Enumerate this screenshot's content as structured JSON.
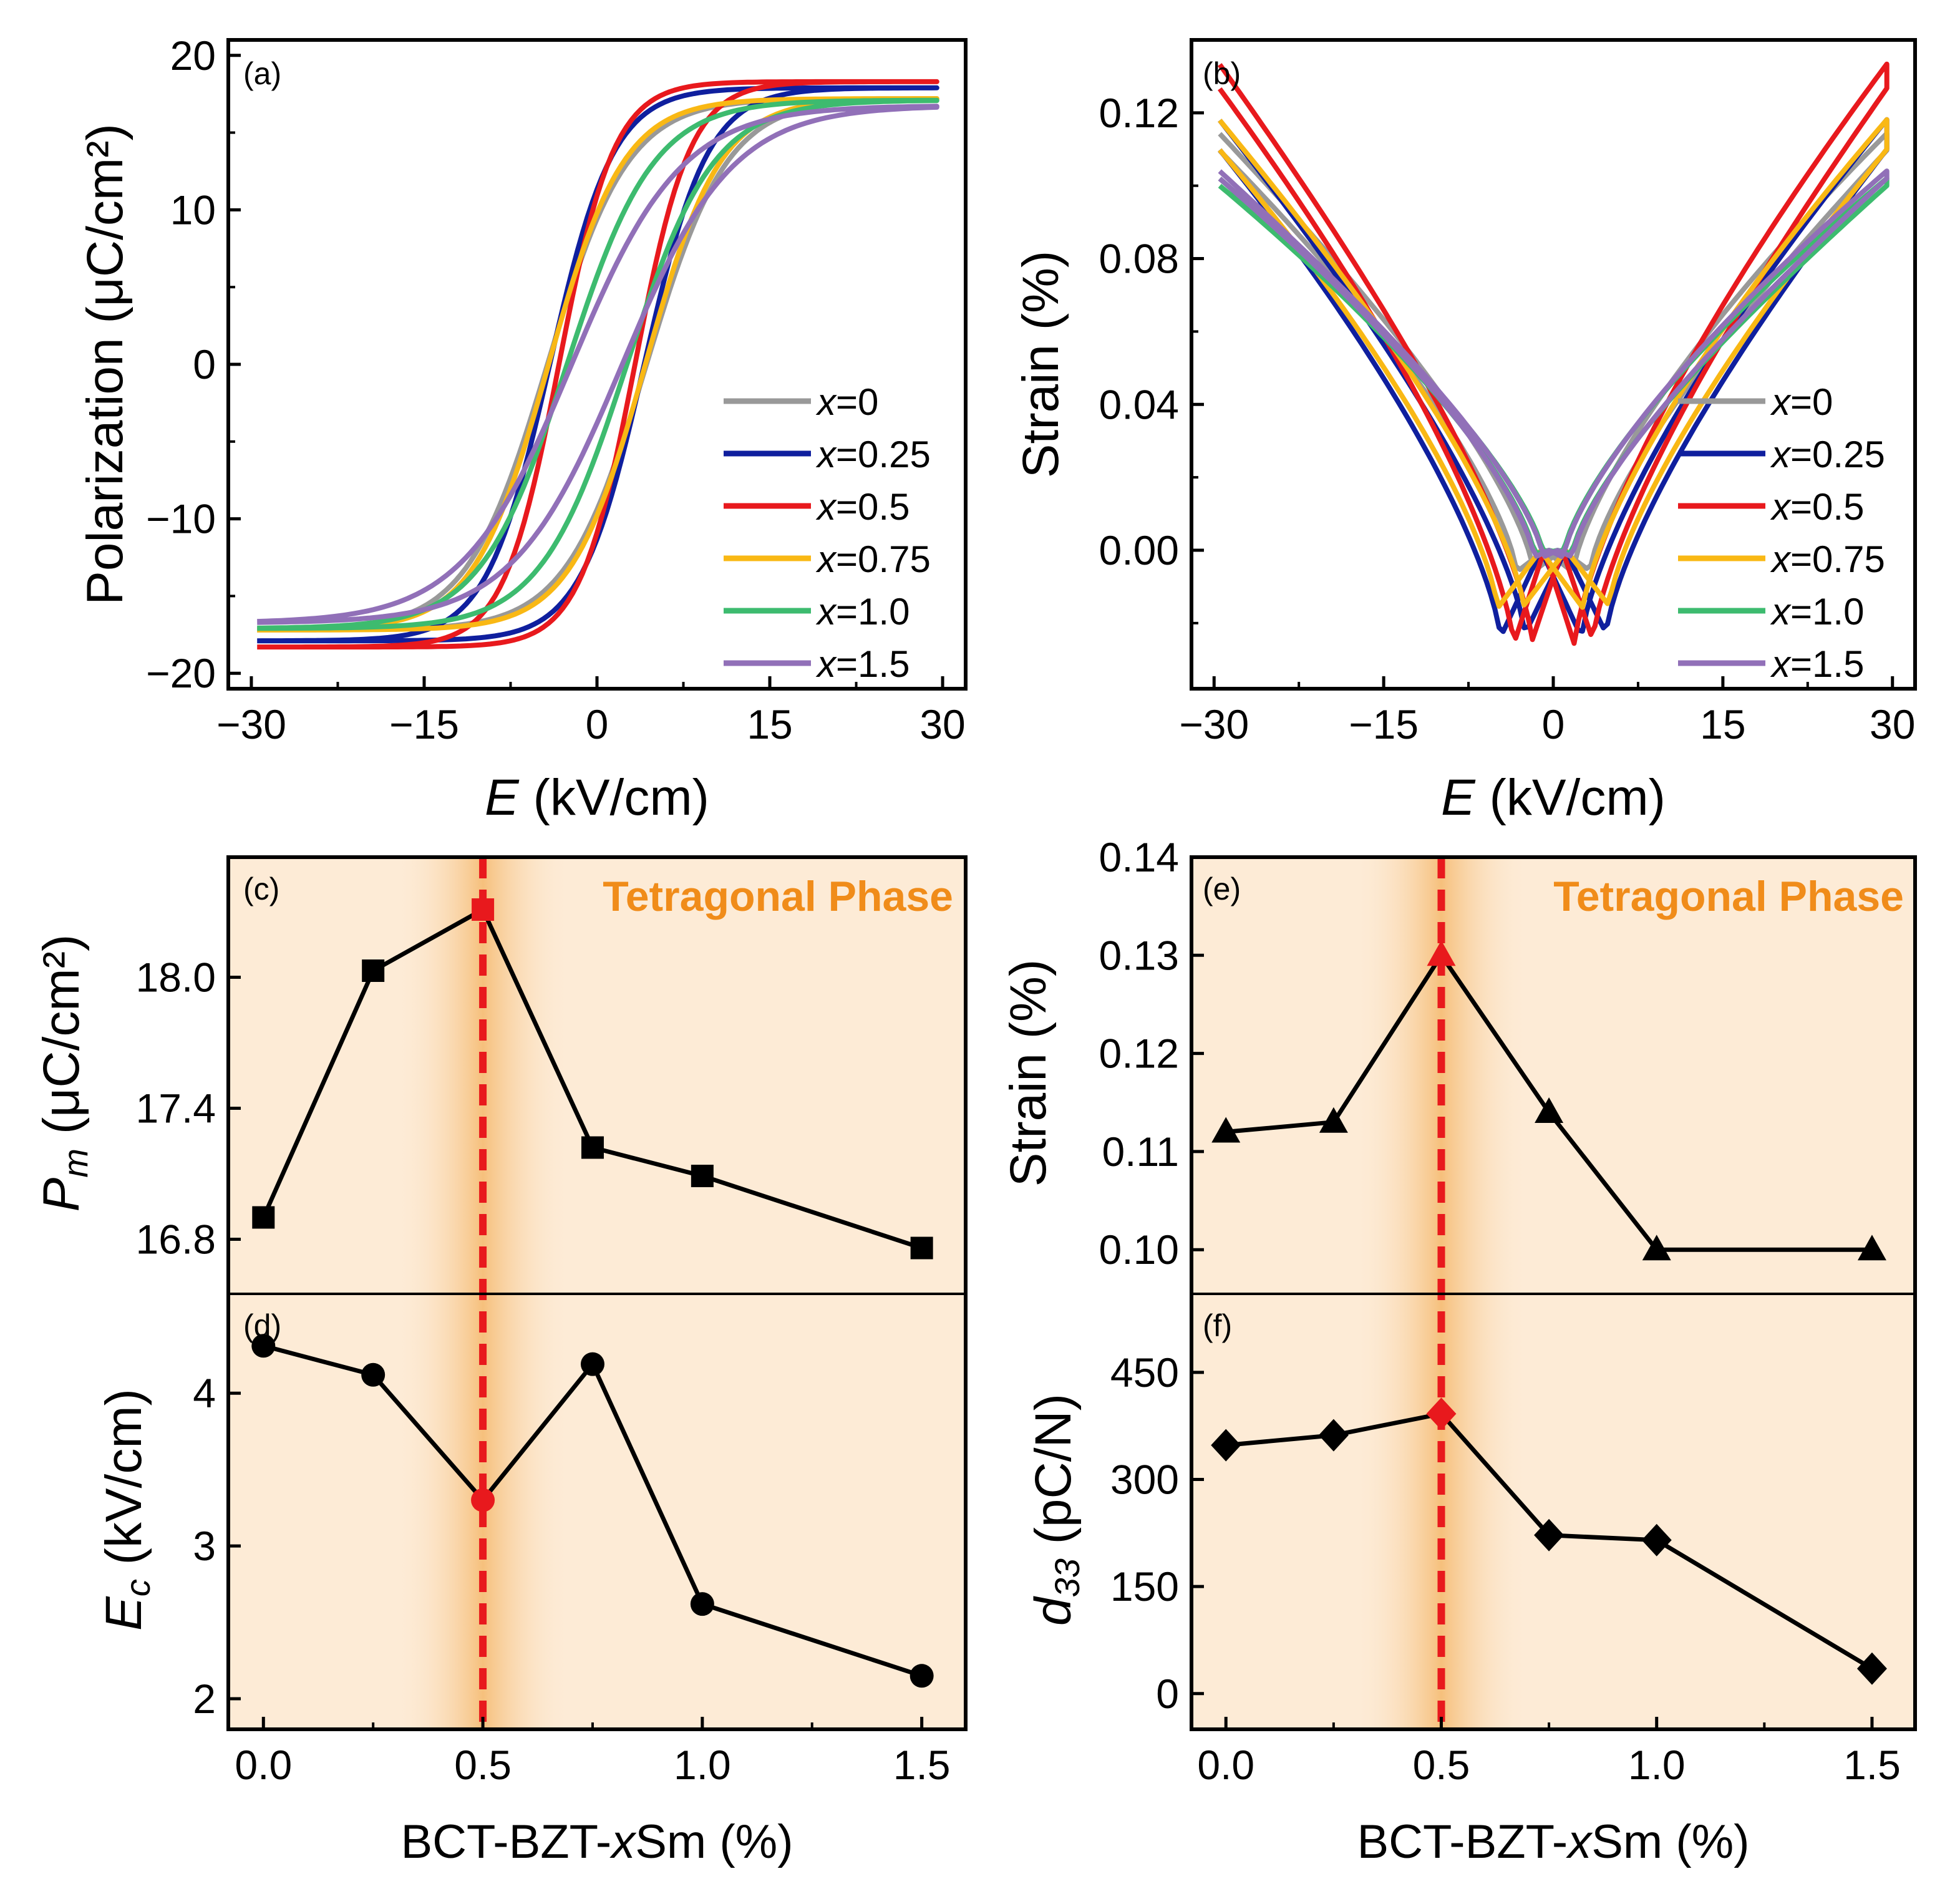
{
  "chart_data": [
    {
      "id": "a",
      "type": "line",
      "panel_label": "(a)",
      "xlabel_italic": "E",
      "xlabel_rest": " (kV/cm)",
      "ylabel": "Polarization (μC/cm²)",
      "xlim": [
        -32,
        32
      ],
      "ylim": [
        -21,
        21
      ],
      "xticks": [
        -30,
        -15,
        0,
        15,
        30
      ],
      "xtick_labels": [
        "−30",
        "−15",
        "0",
        "15",
        "30"
      ],
      "yticks": [
        -20,
        -10,
        0,
        10,
        20
      ],
      "ytick_labels": [
        "−20",
        "−10",
        "0",
        "10",
        "20"
      ],
      "legend_position": "bottom-right",
      "series": [
        {
          "name": "x=0",
          "var": "x",
          "val": "=0",
          "color": "#999999",
          "Ps": 17.2,
          "Ec": 4.3,
          "w": 7.0,
          "Emax": 29.5
        },
        {
          "name": "x=0.25",
          "var": "x",
          "val": "=0.25",
          "color": "#0f1f9e",
          "Ps": 17.9,
          "Ec": 4.1,
          "w": 5.5,
          "Emax": 29.5
        },
        {
          "name": "x=0.5",
          "var": "x",
          "val": "=0.5",
          "color": "#e8191d",
          "Ps": 18.3,
          "Ec": 3.3,
          "w": 4.8,
          "Emax": 29.5
        },
        {
          "name": "x=0.75",
          "var": "x",
          "val": "=0.75",
          "color": "#f9b814",
          "Ps": 17.2,
          "Ec": 4.2,
          "w": 6.5,
          "Emax": 29.5
        },
        {
          "name": "x=1.0",
          "var": "x",
          "val": "=1.0",
          "color": "#3dbb6f",
          "Ps": 17.1,
          "Ec": 2.6,
          "w": 7.5,
          "Emax": 29.5
        },
        {
          "name": "x=1.5",
          "var": "x",
          "val": "=1.5",
          "color": "#9170b8",
          "Ps": 16.75,
          "Ec": 2.2,
          "w": 9.5,
          "Emax": 29.5
        }
      ]
    },
    {
      "id": "b",
      "type": "line",
      "panel_label": "(b)",
      "xlabel_italic": "E",
      "xlabel_rest": " (kV/cm)",
      "ylabel": "Strain (%)",
      "xlim": [
        -32,
        32
      ],
      "ylim": [
        -0.038,
        0.14
      ],
      "xticks": [
        -30,
        -15,
        0,
        15,
        30
      ],
      "xtick_labels": [
        "−30",
        "−15",
        "0",
        "15",
        "30"
      ],
      "yticks": [
        0.0,
        0.04,
        0.08,
        0.12
      ],
      "ytick_labels": [
        "0.00",
        "0.04",
        "0.08",
        "0.12"
      ],
      "legend_position": "bottom-right",
      "series": [
        {
          "name": "x=0",
          "var": "x",
          "val": "=0",
          "color": "#999999",
          "Smax": 0.112,
          "Smin": -0.006,
          "E0": 2.5
        },
        {
          "name": "x=0.25",
          "var": "x",
          "val": "=0.25",
          "color": "#0f1f9e",
          "Smax": 0.114,
          "Smin": -0.024,
          "E0": 3.6
        },
        {
          "name": "x=0.5",
          "var": "x",
          "val": "=0.5",
          "color": "#e8191d",
          "Smax": 0.13,
          "Smin": -0.026,
          "E0": 2.7
        },
        {
          "name": "x=0.75",
          "var": "x",
          "val": "=0.75",
          "color": "#f9b814",
          "Smax": 0.114,
          "Smin": -0.016,
          "E0": 3.8
        },
        {
          "name": "x=1.0",
          "var": "x",
          "val": "=1.0",
          "color": "#3dbb6f",
          "Smax": 0.101,
          "Smin": -0.001,
          "E0": 1.3
        },
        {
          "name": "x=1.5",
          "var": "x",
          "val": "=1.5",
          "color": "#9170b8",
          "Smax": 0.103,
          "Smin": -0.002,
          "E0": 1.3
        }
      ]
    },
    {
      "id": "c",
      "type": "line",
      "panel_label": "(c)",
      "ylabel_italic": "P",
      "ylabel_sub": "m",
      "ylabel_rest": " (μC/cm²)",
      "annotation": "Tetragonal Phase",
      "marker": "square",
      "x": [
        0,
        0.25,
        0.5,
        0.75,
        1.0,
        1.5
      ],
      "y": [
        16.9,
        18.03,
        18.31,
        17.22,
        17.09,
        16.76
      ],
      "highlight_index": 2,
      "vline_x": 0.5,
      "xlim": [
        -0.08,
        1.6
      ],
      "ylim": [
        16.55,
        18.55
      ],
      "yticks": [
        16.8,
        17.4,
        18.0
      ],
      "ytick_labels": [
        "16.8",
        "17.4",
        "18.0"
      ]
    },
    {
      "id": "d",
      "type": "line",
      "panel_label": "(d)",
      "ylabel_italic": "E",
      "ylabel_sub": "c",
      "ylabel_rest": " (kV/cm)",
      "marker": "circle",
      "x": [
        0,
        0.25,
        0.5,
        0.75,
        1.0,
        1.5
      ],
      "y": [
        4.31,
        4.12,
        3.3,
        4.19,
        2.62,
        2.15
      ],
      "highlight_index": 2,
      "vline_x": 0.5,
      "xlim": [
        -0.08,
        1.6
      ],
      "ylim": [
        1.8,
        4.65
      ],
      "yticks": [
        2,
        3,
        4
      ],
      "ytick_labels": [
        "2",
        "3",
        "4"
      ],
      "xticks": [
        0.0,
        0.5,
        1.0,
        1.5
      ],
      "xtick_labels": [
        "0.0",
        "0.5",
        "1.0",
        "1.5"
      ],
      "xlabel_pre": "BCT-BZT-",
      "xlabel_italic": "x",
      "xlabel_post": "Sm (%)"
    },
    {
      "id": "e",
      "type": "line",
      "panel_label": "(e)",
      "ylabel": "Strain (%)",
      "annotation": "Tetragonal Phase",
      "marker": "triangle",
      "x": [
        0,
        0.25,
        0.5,
        0.75,
        1.0,
        1.5
      ],
      "y": [
        0.112,
        0.113,
        0.13,
        0.114,
        0.1,
        0.1
      ],
      "highlight_index": 2,
      "vline_x": 0.5,
      "xlim": [
        -0.08,
        1.6
      ],
      "ylim": [
        0.0955,
        0.14
      ],
      "yticks": [
        0.1,
        0.11,
        0.12,
        0.13,
        0.14
      ],
      "ytick_labels": [
        "0.10",
        "0.11",
        "0.12",
        "0.13",
        "0.14"
      ]
    },
    {
      "id": "f",
      "type": "line",
      "panel_label": "(f)",
      "ylabel_italic": "d",
      "ylabel_sub": "33",
      "ylabel_rest": " (pC/N)",
      "marker": "diamond",
      "x": [
        0,
        0.25,
        0.5,
        0.75,
        1.0,
        1.5
      ],
      "y": [
        348,
        362,
        392,
        222,
        215,
        35
      ],
      "highlight_index": 2,
      "vline_x": 0.5,
      "xlim": [
        -0.08,
        1.6
      ],
      "ylim": [
        -50,
        560
      ],
      "yticks": [
        0,
        150,
        300,
        450
      ],
      "ytick_labels": [
        "0",
        "150",
        "300",
        "450"
      ],
      "xticks": [
        0.0,
        0.5,
        1.0,
        1.5
      ],
      "xtick_labels": [
        "0.0",
        "0.5",
        "1.0",
        "1.5"
      ],
      "xlabel_pre": "BCT-BZT-",
      "xlabel_italic": "x",
      "xlabel_post": "Sm (%)"
    }
  ]
}
